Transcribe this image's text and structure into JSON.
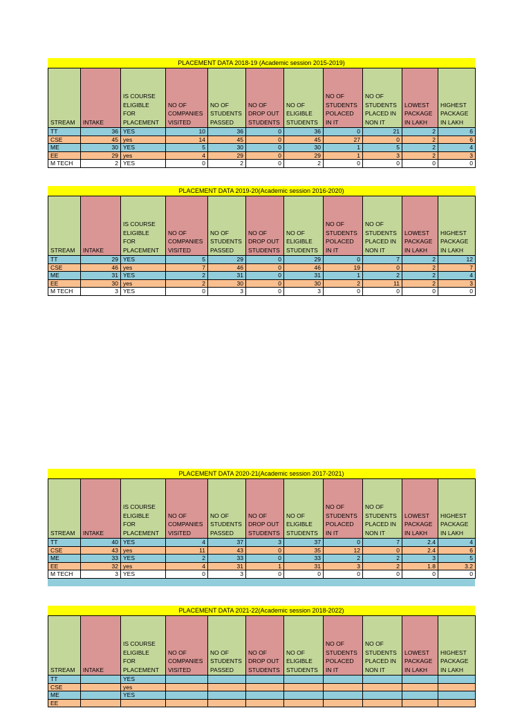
{
  "columns": [
    "STREAM",
    "INTAKE",
    "IS COURSE ELIGIBLE FOR PLACEMENT",
    "NO OF COMPANIES VISITED",
    "NO OF STUDENTS PASSED",
    "NO OF DROP OUT STUDENTS",
    "NO OF ELIGIBLE STUDENTS",
    "NO OF STUDENTS POLACED IN IT",
    "NO OF STUDENTS PLACED IN NON IT",
    "LOWEST PACKAGE IN LAKH",
    "HIGHEST PACKAGE IN LAKH"
  ],
  "tables": [
    {
      "title": "PLACEMENT DATA 2018-19 (Academic session 2015-2019)",
      "rows": [
        [
          "TT",
          "36",
          "YES",
          "10",
          "36",
          "0",
          "36",
          "0",
          "21",
          "2",
          "6"
        ],
        [
          "CSE",
          "45",
          "yes",
          "14",
          "45",
          "0",
          "45",
          "27",
          "0",
          "2",
          "6"
        ],
        [
          "ME",
          "30",
          "YES",
          "5",
          "30",
          "0",
          "30",
          "1",
          "5",
          "2",
          "4"
        ],
        [
          "EE",
          "29",
          "yes",
          "4",
          "29",
          "0",
          "29",
          "1",
          "3",
          "2",
          "3"
        ],
        [
          "M TECH",
          "2",
          "YES",
          "0",
          "2",
          "0",
          "2",
          "0",
          "0",
          "0",
          "0"
        ]
      ]
    },
    {
      "title": "PLACEMENT DATA 2019-20(Academic session 2016-2020)",
      "rows": [
        [
          "TT",
          "29",
          "YES",
          "5",
          "29",
          "0",
          "29",
          "0",
          "7",
          "2",
          "12"
        ],
        [
          "CSE",
          "46",
          "yes",
          "7",
          "46",
          "0",
          "46",
          "19",
          "0",
          "2",
          "7"
        ],
        [
          "ME",
          "31",
          "YES",
          "2",
          "31",
          "0",
          "31",
          "1",
          "2",
          "2",
          "4"
        ],
        [
          "EE",
          "30",
          "yes",
          "2",
          "30",
          "0",
          "30",
          "2",
          "11",
          "2",
          "3"
        ],
        [
          "M TECH",
          "3",
          "YES",
          "0",
          "3",
          "0",
          "3",
          "0",
          "0",
          "0",
          "0"
        ]
      ]
    },
    {
      "title": "PLACEMENT DATA 2020-21(Academic session 2017-2021)",
      "rows": [
        [
          "TT",
          "40",
          "YES",
          "4",
          "37",
          "3",
          "37",
          "0",
          "7",
          "2.4",
          "4"
        ],
        [
          "CSE",
          "43",
          "yes",
          "11",
          "43",
          "0",
          "35",
          "12",
          "0",
          "2.4",
          "6"
        ],
        [
          "ME",
          "33",
          "YES",
          "2",
          "33",
          "0",
          "33",
          "2",
          "2",
          "3",
          "5"
        ],
        [
          "EE",
          "32",
          "yes",
          "4",
          "31",
          "1",
          "31",
          "3",
          "2",
          "1.8",
          "3.2"
        ],
        [
          "M TECH",
          "3",
          "YES",
          "0",
          "3",
          "0",
          "0",
          "0",
          "0",
          "0",
          "0"
        ]
      ]
    },
    {
      "title": "PLACEMENT DATA 2021-22(Academic session 2018-2022)",
      "rows": [
        [
          "TT",
          "",
          "YES",
          "",
          "",
          "",
          "",
          "",
          "",
          "",
          ""
        ],
        [
          "CSE",
          "",
          "yes",
          "",
          "",
          "",
          "",
          "",
          "",
          "",
          ""
        ],
        [
          "ME",
          "",
          "YES",
          "",
          "",
          "",
          "",
          "",
          "",
          "",
          ""
        ],
        [
          "EE",
          "",
          "",
          "",
          "",
          "",
          "",
          "",
          "",
          "",
          ""
        ]
      ]
    }
  ]
}
